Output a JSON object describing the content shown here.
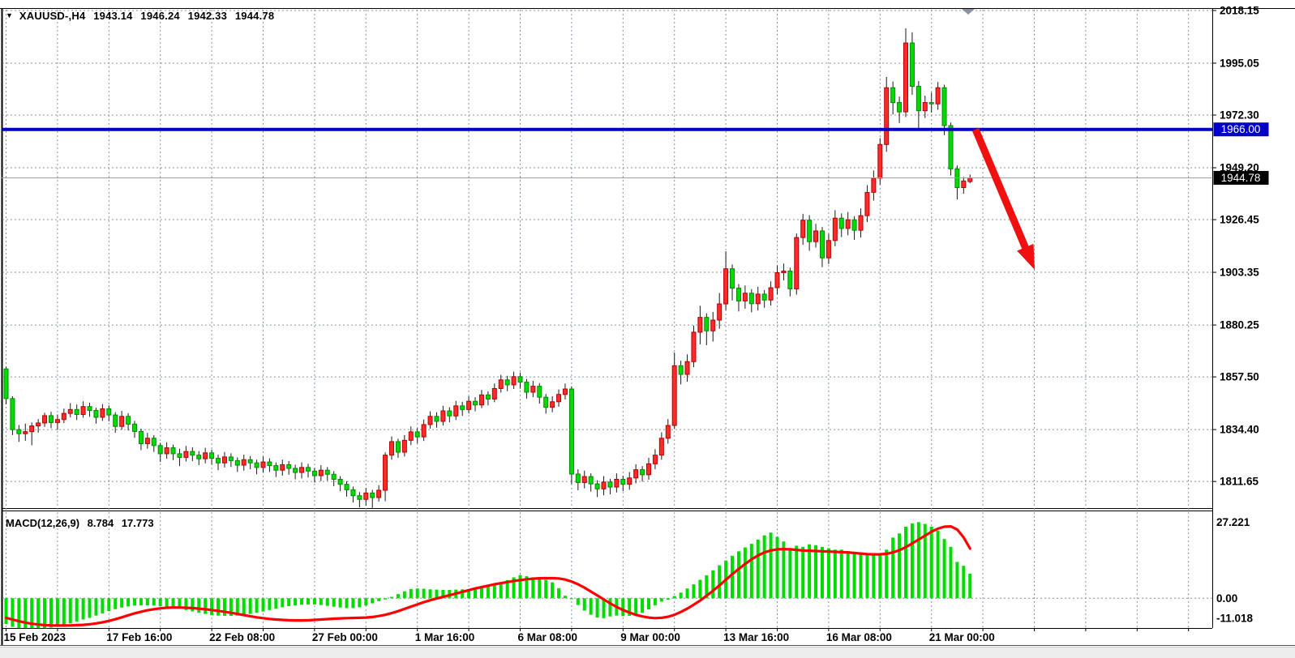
{
  "title": {
    "symbol": "XAUUSD-,H4",
    "open": "1943.14",
    "high": "1946.24",
    "low": "1942.33",
    "close": "1944.78"
  },
  "indicator_label": {
    "name": "MACD(12,26,9)",
    "main_value": "8.784",
    "signal_value": "17.773"
  },
  "price_axis": {
    "labels": [
      "2018.15",
      "1995.05",
      "1972.30",
      "1949.20",
      "1926.45",
      "1903.35",
      "1880.25",
      "1857.50",
      "1834.40",
      "1811.65"
    ],
    "values": [
      2018.15,
      1995.05,
      1972.3,
      1949.2,
      1926.45,
      1903.35,
      1880.25,
      1857.5,
      1834.4,
      1811.65
    ],
    "highlight_blue": {
      "text": "1966.00",
      "value": 1966.0,
      "bg": "#0000c8",
      "fg": "#ffffff"
    },
    "highlight_black": {
      "text": "1944.78",
      "value": 1944.78,
      "bg": "#000000",
      "fg": "#ffffff"
    }
  },
  "macd_axis": {
    "labels": [
      "27.221",
      "0.00",
      "-11.018"
    ],
    "values": [
      27.221,
      0.0,
      -11.018
    ]
  },
  "time_axis": {
    "labels": [
      "15 Feb 2023",
      "17 Feb 16:00",
      "22 Feb 08:00",
      "27 Feb 00:00",
      "1 Mar 16:00",
      "6 Mar 08:00",
      "9 Mar 00:00",
      "13 Mar 16:00",
      "16 Mar 08:00",
      "21 Mar 00:00"
    ],
    "bar_indices": [
      0,
      16,
      32,
      48,
      64,
      80,
      96,
      112,
      128,
      144
    ]
  },
  "colors": {
    "bull_fill": "#ff2a2a",
    "bull_border": "#b40000",
    "bear_fill": "#00dc00",
    "bear_border": "#008a00",
    "wick": "#1a1a1a",
    "grid": "#8593a5",
    "panel_border": "#000000",
    "hline_blue": "#0000c8",
    "current_price_line": "#9aa0a6",
    "macd_histogram": "#00dc00",
    "macd_signal": "#ff0000",
    "arrow": "#f01010",
    "text": "#000000",
    "background": "#ffffff",
    "scroll_marker": "#8a94a0"
  },
  "chart_data": {
    "type": "candlestick",
    "symbol": "XAUUSD",
    "timeframe": "H4",
    "title": "XAUUSD-,H4  1943.14 1946.24 1942.33 1944.78",
    "x_range": [
      "15 Feb 2023 00:00",
      "21 Mar 2023 16:00"
    ],
    "price_range_visible": [
      1800.0,
      2022.7
    ],
    "grid": "dashed",
    "note_color_convention": "red candles = bullish (close>open), green candles = bearish",
    "ohlc": [
      [
        1861.0,
        1862.0,
        1845.5,
        1848.0
      ],
      [
        1848.0,
        1849.0,
        1832.0,
        1834.4
      ],
      [
        1834.4,
        1836.4,
        1829.0,
        1832.6
      ],
      [
        1832.6,
        1837.0,
        1829.5,
        1833.5
      ],
      [
        1833.5,
        1837.5,
        1827.5,
        1836.0
      ],
      [
        1836.0,
        1839.0,
        1833.0,
        1837.3
      ],
      [
        1837.3,
        1841.8,
        1835.6,
        1840.5
      ],
      [
        1840.5,
        1842.2,
        1835.0,
        1837.5
      ],
      [
        1837.5,
        1841.0,
        1834.2,
        1838.8
      ],
      [
        1838.8,
        1843.6,
        1837.2,
        1841.5
      ],
      [
        1841.5,
        1846.0,
        1839.8,
        1843.2
      ],
      [
        1843.2,
        1845.4,
        1838.6,
        1841.0
      ],
      [
        1841.0,
        1846.8,
        1839.6,
        1844.5
      ],
      [
        1844.5,
        1846.2,
        1840.0,
        1842.8
      ],
      [
        1842.8,
        1844.0,
        1837.0,
        1839.8
      ],
      [
        1839.8,
        1845.6,
        1838.2,
        1843.5
      ],
      [
        1843.5,
        1845.0,
        1838.0,
        1840.8
      ],
      [
        1840.8,
        1842.0,
        1833.0,
        1835.8
      ],
      [
        1835.8,
        1842.6,
        1834.4,
        1840.2
      ],
      [
        1840.2,
        1841.6,
        1834.0,
        1836.8
      ],
      [
        1836.8,
        1838.2,
        1830.8,
        1833.6
      ],
      [
        1833.6,
        1834.8,
        1825.4,
        1828.2
      ],
      [
        1828.2,
        1833.0,
        1826.0,
        1830.6
      ],
      [
        1830.6,
        1832.0,
        1824.6,
        1827.4
      ],
      [
        1827.4,
        1828.6,
        1820.2,
        1823.8
      ],
      [
        1823.8,
        1828.8,
        1821.6,
        1826.4
      ],
      [
        1826.4,
        1827.8,
        1821.0,
        1823.8
      ],
      [
        1823.8,
        1826.0,
        1818.4,
        1822.2
      ],
      [
        1822.2,
        1827.2,
        1820.4,
        1824.8
      ],
      [
        1824.8,
        1826.6,
        1820.6,
        1823.2
      ],
      [
        1823.2,
        1825.0,
        1818.8,
        1821.6
      ],
      [
        1821.6,
        1826.4,
        1819.6,
        1824.2
      ],
      [
        1824.2,
        1825.6,
        1819.0,
        1821.8
      ],
      [
        1821.8,
        1823.4,
        1816.6,
        1819.8
      ],
      [
        1819.8,
        1824.6,
        1817.8,
        1822.4
      ],
      [
        1822.4,
        1824.0,
        1818.0,
        1820.8
      ],
      [
        1820.8,
        1822.2,
        1815.8,
        1818.8
      ],
      [
        1818.8,
        1823.4,
        1816.4,
        1821.2
      ],
      [
        1821.2,
        1822.8,
        1817.0,
        1819.8
      ],
      [
        1819.8,
        1821.2,
        1814.8,
        1817.8
      ],
      [
        1817.8,
        1822.6,
        1815.6,
        1820.2
      ],
      [
        1820.2,
        1821.8,
        1815.8,
        1818.6
      ],
      [
        1818.6,
        1820.0,
        1813.6,
        1816.6
      ],
      [
        1816.6,
        1821.2,
        1814.2,
        1819.0
      ],
      [
        1819.0,
        1820.6,
        1814.6,
        1817.4
      ],
      [
        1817.4,
        1819.0,
        1812.6,
        1815.6
      ],
      [
        1815.6,
        1820.0,
        1813.0,
        1817.8
      ],
      [
        1817.8,
        1819.4,
        1813.4,
        1816.2
      ],
      [
        1816.2,
        1817.6,
        1811.2,
        1814.2
      ],
      [
        1814.2,
        1818.8,
        1811.8,
        1816.6
      ],
      [
        1816.6,
        1818.0,
        1812.0,
        1814.8
      ],
      [
        1814.8,
        1816.2,
        1809.6,
        1812.6
      ],
      [
        1812.6,
        1814.0,
        1807.4,
        1810.4
      ],
      [
        1810.4,
        1811.8,
        1805.0,
        1808.0
      ],
      [
        1808.0,
        1809.4,
        1802.4,
        1805.4
      ],
      [
        1805.4,
        1807.0,
        1800.3,
        1803.8
      ],
      [
        1803.8,
        1808.8,
        1801.0,
        1806.6
      ],
      [
        1806.6,
        1808.0,
        1800.0,
        1804.6
      ],
      [
        1804.6,
        1810.0,
        1802.8,
        1807.8
      ],
      [
        1807.8,
        1824.4,
        1803.0,
        1823.2
      ],
      [
        1823.2,
        1831.4,
        1821.2,
        1829.1
      ],
      [
        1829.1,
        1830.4,
        1822.0,
        1824.5
      ],
      [
        1824.5,
        1832.0,
        1822.6,
        1829.7
      ],
      [
        1829.7,
        1835.8,
        1827.6,
        1833.4
      ],
      [
        1833.4,
        1835.0,
        1828.4,
        1831.2
      ],
      [
        1831.2,
        1838.8,
        1829.4,
        1836.6
      ],
      [
        1836.6,
        1842.4,
        1834.8,
        1840.2
      ],
      [
        1840.2,
        1842.0,
        1835.2,
        1838.0
      ],
      [
        1838.0,
        1844.8,
        1836.2,
        1842.6
      ],
      [
        1842.6,
        1844.2,
        1837.6,
        1840.4
      ],
      [
        1840.4,
        1847.0,
        1838.6,
        1844.8
      ],
      [
        1844.8,
        1846.6,
        1840.4,
        1843.2
      ],
      [
        1843.2,
        1849.0,
        1841.4,
        1846.8
      ],
      [
        1846.8,
        1848.6,
        1842.4,
        1845.2
      ],
      [
        1845.2,
        1851.8,
        1843.8,
        1849.6
      ],
      [
        1849.6,
        1851.2,
        1845.0,
        1847.8
      ],
      [
        1847.8,
        1854.6,
        1846.4,
        1852.4
      ],
      [
        1852.4,
        1858.4,
        1850.6,
        1856.2
      ],
      [
        1856.2,
        1858.0,
        1851.2,
        1854.0
      ],
      [
        1854.0,
        1859.8,
        1852.2,
        1857.6
      ],
      [
        1857.6,
        1859.4,
        1852.4,
        1855.2
      ],
      [
        1855.2,
        1856.6,
        1848.0,
        1850.8
      ],
      [
        1850.8,
        1855.8,
        1848.6,
        1853.4
      ],
      [
        1853.4,
        1854.8,
        1845.8,
        1848.6
      ],
      [
        1848.6,
        1850.0,
        1841.4,
        1844.2
      ],
      [
        1844.2,
        1849.0,
        1842.0,
        1846.6
      ],
      [
        1846.6,
        1852.0,
        1844.4,
        1849.8
      ],
      [
        1849.8,
        1854.6,
        1847.6,
        1852.2
      ],
      [
        1852.2,
        1853.4,
        1810.5,
        1814.9
      ],
      [
        1814.9,
        1817.0,
        1807.8,
        1811.2
      ],
      [
        1811.2,
        1816.4,
        1808.6,
        1813.8
      ],
      [
        1813.8,
        1815.2,
        1807.2,
        1810.6
      ],
      [
        1810.6,
        1812.2,
        1804.8,
        1808.4
      ],
      [
        1808.4,
        1814.0,
        1805.6,
        1811.4
      ],
      [
        1811.4,
        1812.8,
        1806.0,
        1809.2
      ],
      [
        1809.2,
        1815.2,
        1806.8,
        1812.6
      ],
      [
        1812.6,
        1814.2,
        1807.4,
        1810.4
      ],
      [
        1810.4,
        1815.8,
        1808.0,
        1813.2
      ],
      [
        1813.2,
        1819.2,
        1810.8,
        1816.8
      ],
      [
        1816.8,
        1818.4,
        1811.6,
        1814.6
      ],
      [
        1814.6,
        1822.0,
        1812.4,
        1819.4
      ],
      [
        1819.4,
        1825.8,
        1817.0,
        1823.2
      ],
      [
        1823.2,
        1833.2,
        1821.2,
        1830.6
      ],
      [
        1830.6,
        1839.0,
        1828.2,
        1836.2
      ],
      [
        1836.2,
        1868.2,
        1834.6,
        1862.4
      ],
      [
        1862.4,
        1864.6,
        1854.2,
        1858.6
      ],
      [
        1858.6,
        1867.4,
        1855.4,
        1864.2
      ],
      [
        1864.2,
        1880.0,
        1861.8,
        1877.1
      ],
      [
        1877.1,
        1888.7,
        1871.8,
        1883.6
      ],
      [
        1883.6,
        1885.4,
        1871.4,
        1877.7
      ],
      [
        1877.7,
        1886.0,
        1873.0,
        1882.4
      ],
      [
        1882.4,
        1894.3,
        1878.6,
        1889.5
      ],
      [
        1889.5,
        1912.6,
        1886.8,
        1904.9
      ],
      [
        1904.9,
        1906.8,
        1891.0,
        1896.4
      ],
      [
        1896.4,
        1898.2,
        1886.2,
        1890.8
      ],
      [
        1890.8,
        1897.6,
        1887.4,
        1894.2
      ],
      [
        1894.2,
        1896.0,
        1885.8,
        1889.6
      ],
      [
        1889.6,
        1897.0,
        1886.6,
        1893.8
      ],
      [
        1893.8,
        1895.6,
        1887.8,
        1891.2
      ],
      [
        1891.2,
        1899.4,
        1888.8,
        1896.6
      ],
      [
        1896.6,
        1906.4,
        1893.6,
        1903.2
      ],
      [
        1903.2,
        1907.2,
        1899.8,
        1903.9
      ],
      [
        1903.9,
        1905.4,
        1892.8,
        1896.1
      ],
      [
        1896.1,
        1920.4,
        1893.6,
        1918.6
      ],
      [
        1918.6,
        1929.0,
        1915.4,
        1926.2
      ],
      [
        1926.2,
        1928.4,
        1912.8,
        1916.8
      ],
      [
        1916.8,
        1924.6,
        1914.2,
        1921.5
      ],
      [
        1921.5,
        1923.2,
        1905.6,
        1909.7
      ],
      [
        1909.7,
        1920.2,
        1907.0,
        1917.3
      ],
      [
        1917.3,
        1930.6,
        1914.8,
        1927.1
      ],
      [
        1927.1,
        1929.2,
        1918.8,
        1922.6
      ],
      [
        1922.6,
        1929.8,
        1919.6,
        1926.4
      ],
      [
        1926.4,
        1928.0,
        1917.6,
        1921.8
      ],
      [
        1921.8,
        1931.4,
        1918.6,
        1928.2
      ],
      [
        1928.2,
        1941.6,
        1925.4,
        1938.4
      ],
      [
        1938.4,
        1948.0,
        1934.8,
        1944.6
      ],
      [
        1944.6,
        1962.2,
        1941.8,
        1959.4
      ],
      [
        1959.4,
        1989.0,
        1956.2,
        1984.3
      ],
      [
        1984.3,
        1987.0,
        1972.6,
        1977.8
      ],
      [
        1977.8,
        1980.4,
        1968.8,
        1973.7
      ],
      [
        1973.7,
        2010.3,
        1971.4,
        2003.9
      ],
      [
        2003.9,
        2008.6,
        1981.2,
        1984.9
      ],
      [
        1984.9,
        1987.2,
        1966.6,
        1974.2
      ],
      [
        1974.2,
        1980.8,
        1971.0,
        1977.8
      ],
      [
        1977.8,
        1982.2,
        1973.4,
        1977.2
      ],
      [
        1977.2,
        1986.8,
        1974.6,
        1984.3
      ],
      [
        1984.3,
        1985.6,
        1963.5,
        1967.7
      ],
      [
        1967.7,
        1969.0,
        1945.8,
        1948.7
      ],
      [
        1948.7,
        1950.2,
        1935.3,
        1940.5
      ],
      [
        1940.5,
        1945.2,
        1937.8,
        1943.4
      ],
      [
        1943.14,
        1946.24,
        1942.33,
        1944.78
      ]
    ],
    "macd": {
      "params": "12,26,9",
      "current_main": 8.784,
      "current_signal": 17.773,
      "scale_max": 27.221,
      "scale_min": -11.018,
      "histogram": [
        -9.2,
        -10.2,
        -10.8,
        -11.0,
        -11.0,
        -11.0,
        -10.9,
        -10.5,
        -10.0,
        -9.5,
        -9.0,
        -8.3,
        -7.6,
        -7.0,
        -6.2,
        -5.4,
        -4.6,
        -3.9,
        -3.3,
        -2.9,
        -2.6,
        -2.5,
        -2.5,
        -2.6,
        -2.8,
        -3.0,
        -3.2,
        -3.7,
        -4.2,
        -4.7,
        -5.2,
        -5.6,
        -6.0,
        -6.2,
        -6.3,
        -6.3,
        -6.2,
        -6.0,
        -5.6,
        -5.2,
        -4.7,
        -4.2,
        -3.7,
        -3.2,
        -2.8,
        -2.5,
        -2.3,
        -2.2,
        -2.2,
        -2.4,
        -2.7,
        -3.0,
        -3.3,
        -3.5,
        -3.5,
        -3.2,
        -2.6,
        -1.8,
        -1.0,
        -0.4,
        0.5,
        1.5,
        2.5,
        3.3,
        3.5,
        3.4,
        3.2,
        3.1,
        3.0,
        3.0,
        3.1,
        3.2,
        3.3,
        3.6,
        4.0,
        4.4,
        4.6,
        5.0,
        6.5,
        7.5,
        8.3,
        7.9,
        7.5,
        7.1,
        6.6,
        5.7,
        3.6,
        0.9,
        -0.3,
        -2.4,
        -4.4,
        -5.9,
        -6.9,
        -7.1,
        -6.5,
        -6.2,
        -6.4,
        -6.3,
        -5.8,
        -5.2,
        -4.0,
        -2.5,
        -1.2,
        -0.5,
        0.8,
        2.0,
        3.5,
        5.0,
        6.6,
        8.2,
        10.0,
        11.8,
        13.5,
        15.2,
        16.8,
        18.2,
        19.5,
        21.0,
        22.5,
        23.5,
        22.0,
        20.3,
        17.9,
        18.8,
        18.4,
        19.3,
        19.0,
        18.4,
        17.9,
        17.4,
        17.4,
        16.9,
        16.6,
        16.4,
        15.9,
        15.7,
        15.5,
        17.4,
        21.7,
        23.2,
        25.6,
        26.8,
        27.221,
        26.6,
        25.6,
        24.2,
        21.2,
        18.4,
        13.0,
        11.6,
        8.784
      ],
      "signal": [
        -7.0,
        -7.6,
        -8.2,
        -8.7,
        -9.1,
        -9.4,
        -9.6,
        -9.7,
        -9.75,
        -9.75,
        -9.7,
        -9.6,
        -9.5,
        -9.3,
        -9.0,
        -8.6,
        -8.1,
        -7.5,
        -6.8,
        -6.1,
        -5.4,
        -4.8,
        -4.3,
        -3.9,
        -3.6,
        -3.4,
        -3.3,
        -3.3,
        -3.4,
        -3.5,
        -3.7,
        -3.9,
        -4.2,
        -4.5,
        -4.8,
        -5.2,
        -5.6,
        -6.0,
        -6.4,
        -6.8,
        -7.1,
        -7.4,
        -7.6,
        -7.75,
        -7.85,
        -7.9,
        -7.9,
        -7.85,
        -7.75,
        -7.6,
        -7.45,
        -7.3,
        -7.2,
        -7.1,
        -7.05,
        -7.0,
        -6.9,
        -6.7,
        -6.35,
        -5.9,
        -5.3,
        -4.6,
        -3.8,
        -3.0,
        -2.2,
        -1.4,
        -0.7,
        -0.1,
        0.5,
        1.1,
        1.7,
        2.3,
        2.9,
        3.5,
        4.0,
        4.5,
        5.0,
        5.4,
        5.8,
        6.2,
        6.5,
        6.8,
        7.0,
        7.15,
        7.2,
        7.2,
        7.1,
        6.7,
        6.0,
        5.0,
        3.8,
        2.4,
        1.0,
        -0.4,
        -1.8,
        -3.1,
        -4.2,
        -5.1,
        -5.9,
        -6.5,
        -6.9,
        -7.1,
        -7.0,
        -6.6,
        -5.9,
        -4.9,
        -3.7,
        -2.3,
        -0.8,
        0.9,
        2.7,
        4.6,
        6.6,
        8.6,
        10.5,
        12.3,
        13.9,
        15.3,
        16.4,
        17.1,
        17.5,
        17.6,
        17.5,
        17.3,
        17.1,
        17.0,
        16.9,
        16.8,
        16.7,
        16.6,
        16.5,
        16.4,
        16.2,
        16.0,
        15.8,
        15.7,
        15.7,
        15.9,
        16.4,
        17.2,
        18.3,
        19.6,
        21.0,
        22.4,
        23.8,
        24.9,
        25.6,
        25.7,
        24.6,
        21.8,
        17.773
      ]
    },
    "overlays": {
      "horizontal_line": {
        "price": 1966.0,
        "color": "#0000c8",
        "width": 4
      },
      "current_price_line": {
        "price": 1944.78,
        "color": "#9aa0a6"
      },
      "trend_arrow": {
        "start": {
          "x": 1203,
          "price": 1966.0
        },
        "end": {
          "x": 1276,
          "price": 1904.5
        },
        "color": "#f01010"
      }
    }
  }
}
